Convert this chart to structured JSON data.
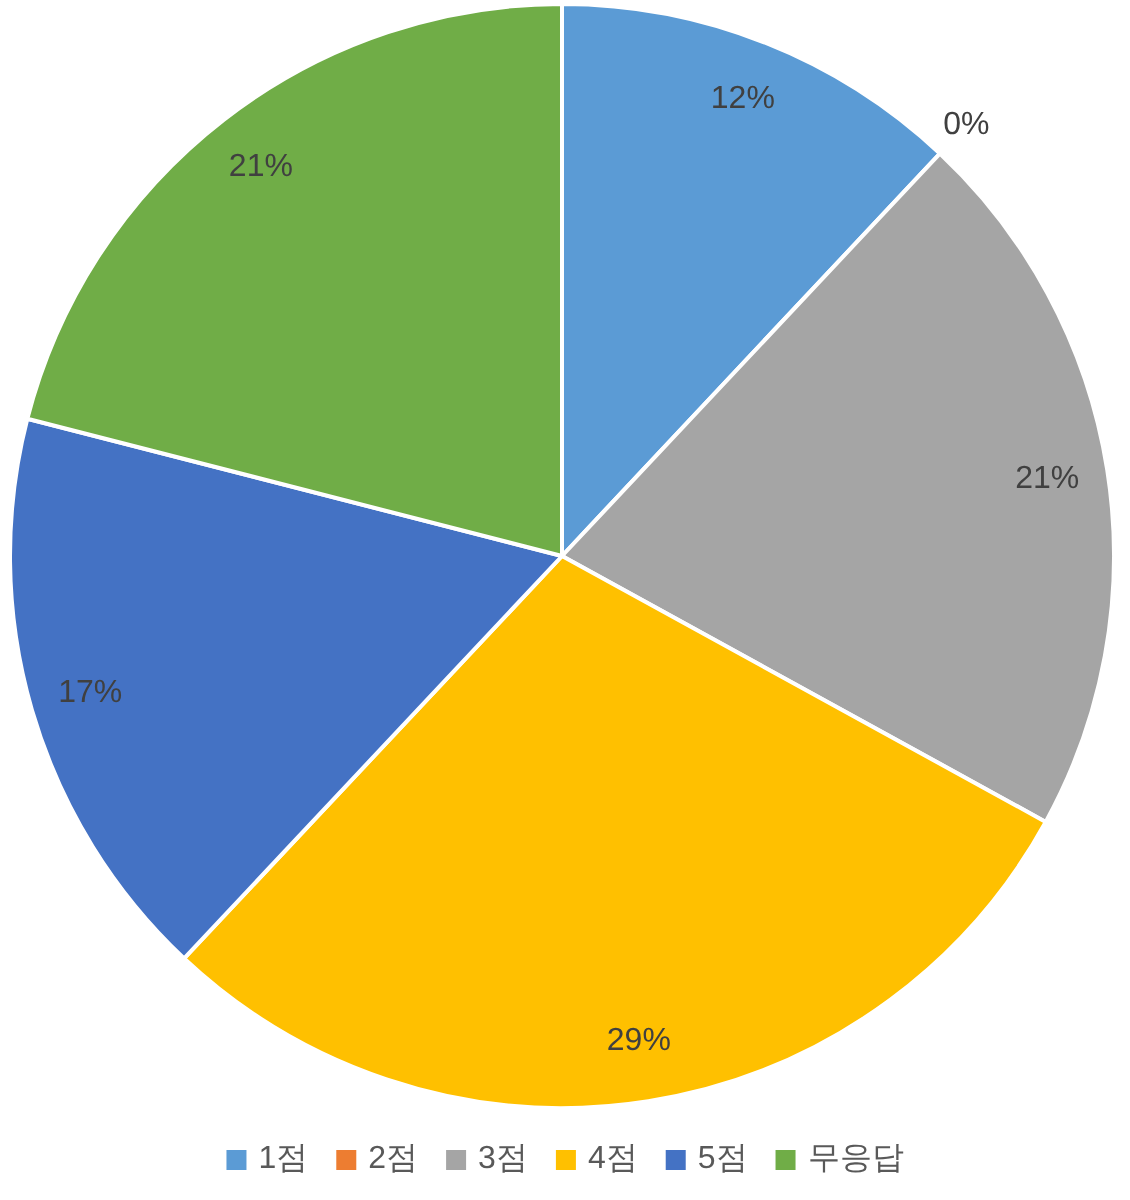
{
  "chart_data": {
    "type": "pie",
    "categories": [
      "1점",
      "2점",
      "3점",
      "4점",
      "5점",
      "무응답"
    ],
    "values": [
      12,
      0,
      21,
      29,
      17,
      21
    ],
    "colors": [
      "#5b9bd5",
      "#ed7d31",
      "#a5a5a5",
      "#ffc000",
      "#4472c4",
      "#70ad47"
    ],
    "value_labels": [
      "12%",
      "0%",
      "21%",
      "29%",
      "17%",
      "21%"
    ],
    "legend": "bottom"
  }
}
